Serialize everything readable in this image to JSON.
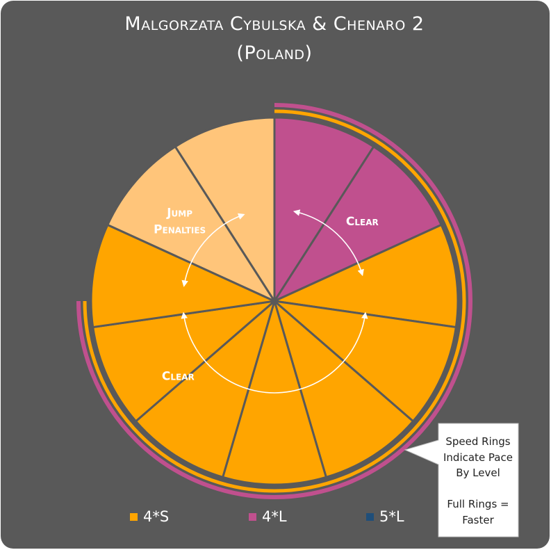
{
  "chart_data": {
    "type": "pie",
    "title": "Malgorzata Cybulska & Chenaro 2",
    "subtitle": "(Poland)",
    "slices": [
      {
        "label": "Clear",
        "count": 2,
        "color": "#C0508E"
      },
      {
        "label": "",
        "count": 7,
        "color": "#FFA500"
      },
      {
        "label": "Jump Penalties",
        "count": 2,
        "color": "#FFC57A"
      }
    ],
    "arrow_labels": [
      {
        "text": "Clear"
      },
      {
        "text": "Jump Penalties"
      },
      {
        "text": "Clear"
      }
    ],
    "speed_rings": [
      {
        "level": "4*S",
        "color": "#FFA500",
        "fraction": 0.75
      },
      {
        "level": "4*L",
        "color": "#C0508E",
        "fraction": 0.75
      }
    ],
    "legend": [
      {
        "label": "4*S",
        "color": "#FFA500"
      },
      {
        "label": "4*L",
        "color": "#C0508E"
      },
      {
        "label": "5*L",
        "color": "#1F4E79"
      }
    ],
    "callout": "Speed Rings\nIndicate Pace\nBy Level\n\nFull Rings =\nFaster"
  },
  "colors": {
    "background": "#595959",
    "divider": "#595959",
    "arrow": "#ffffff"
  }
}
